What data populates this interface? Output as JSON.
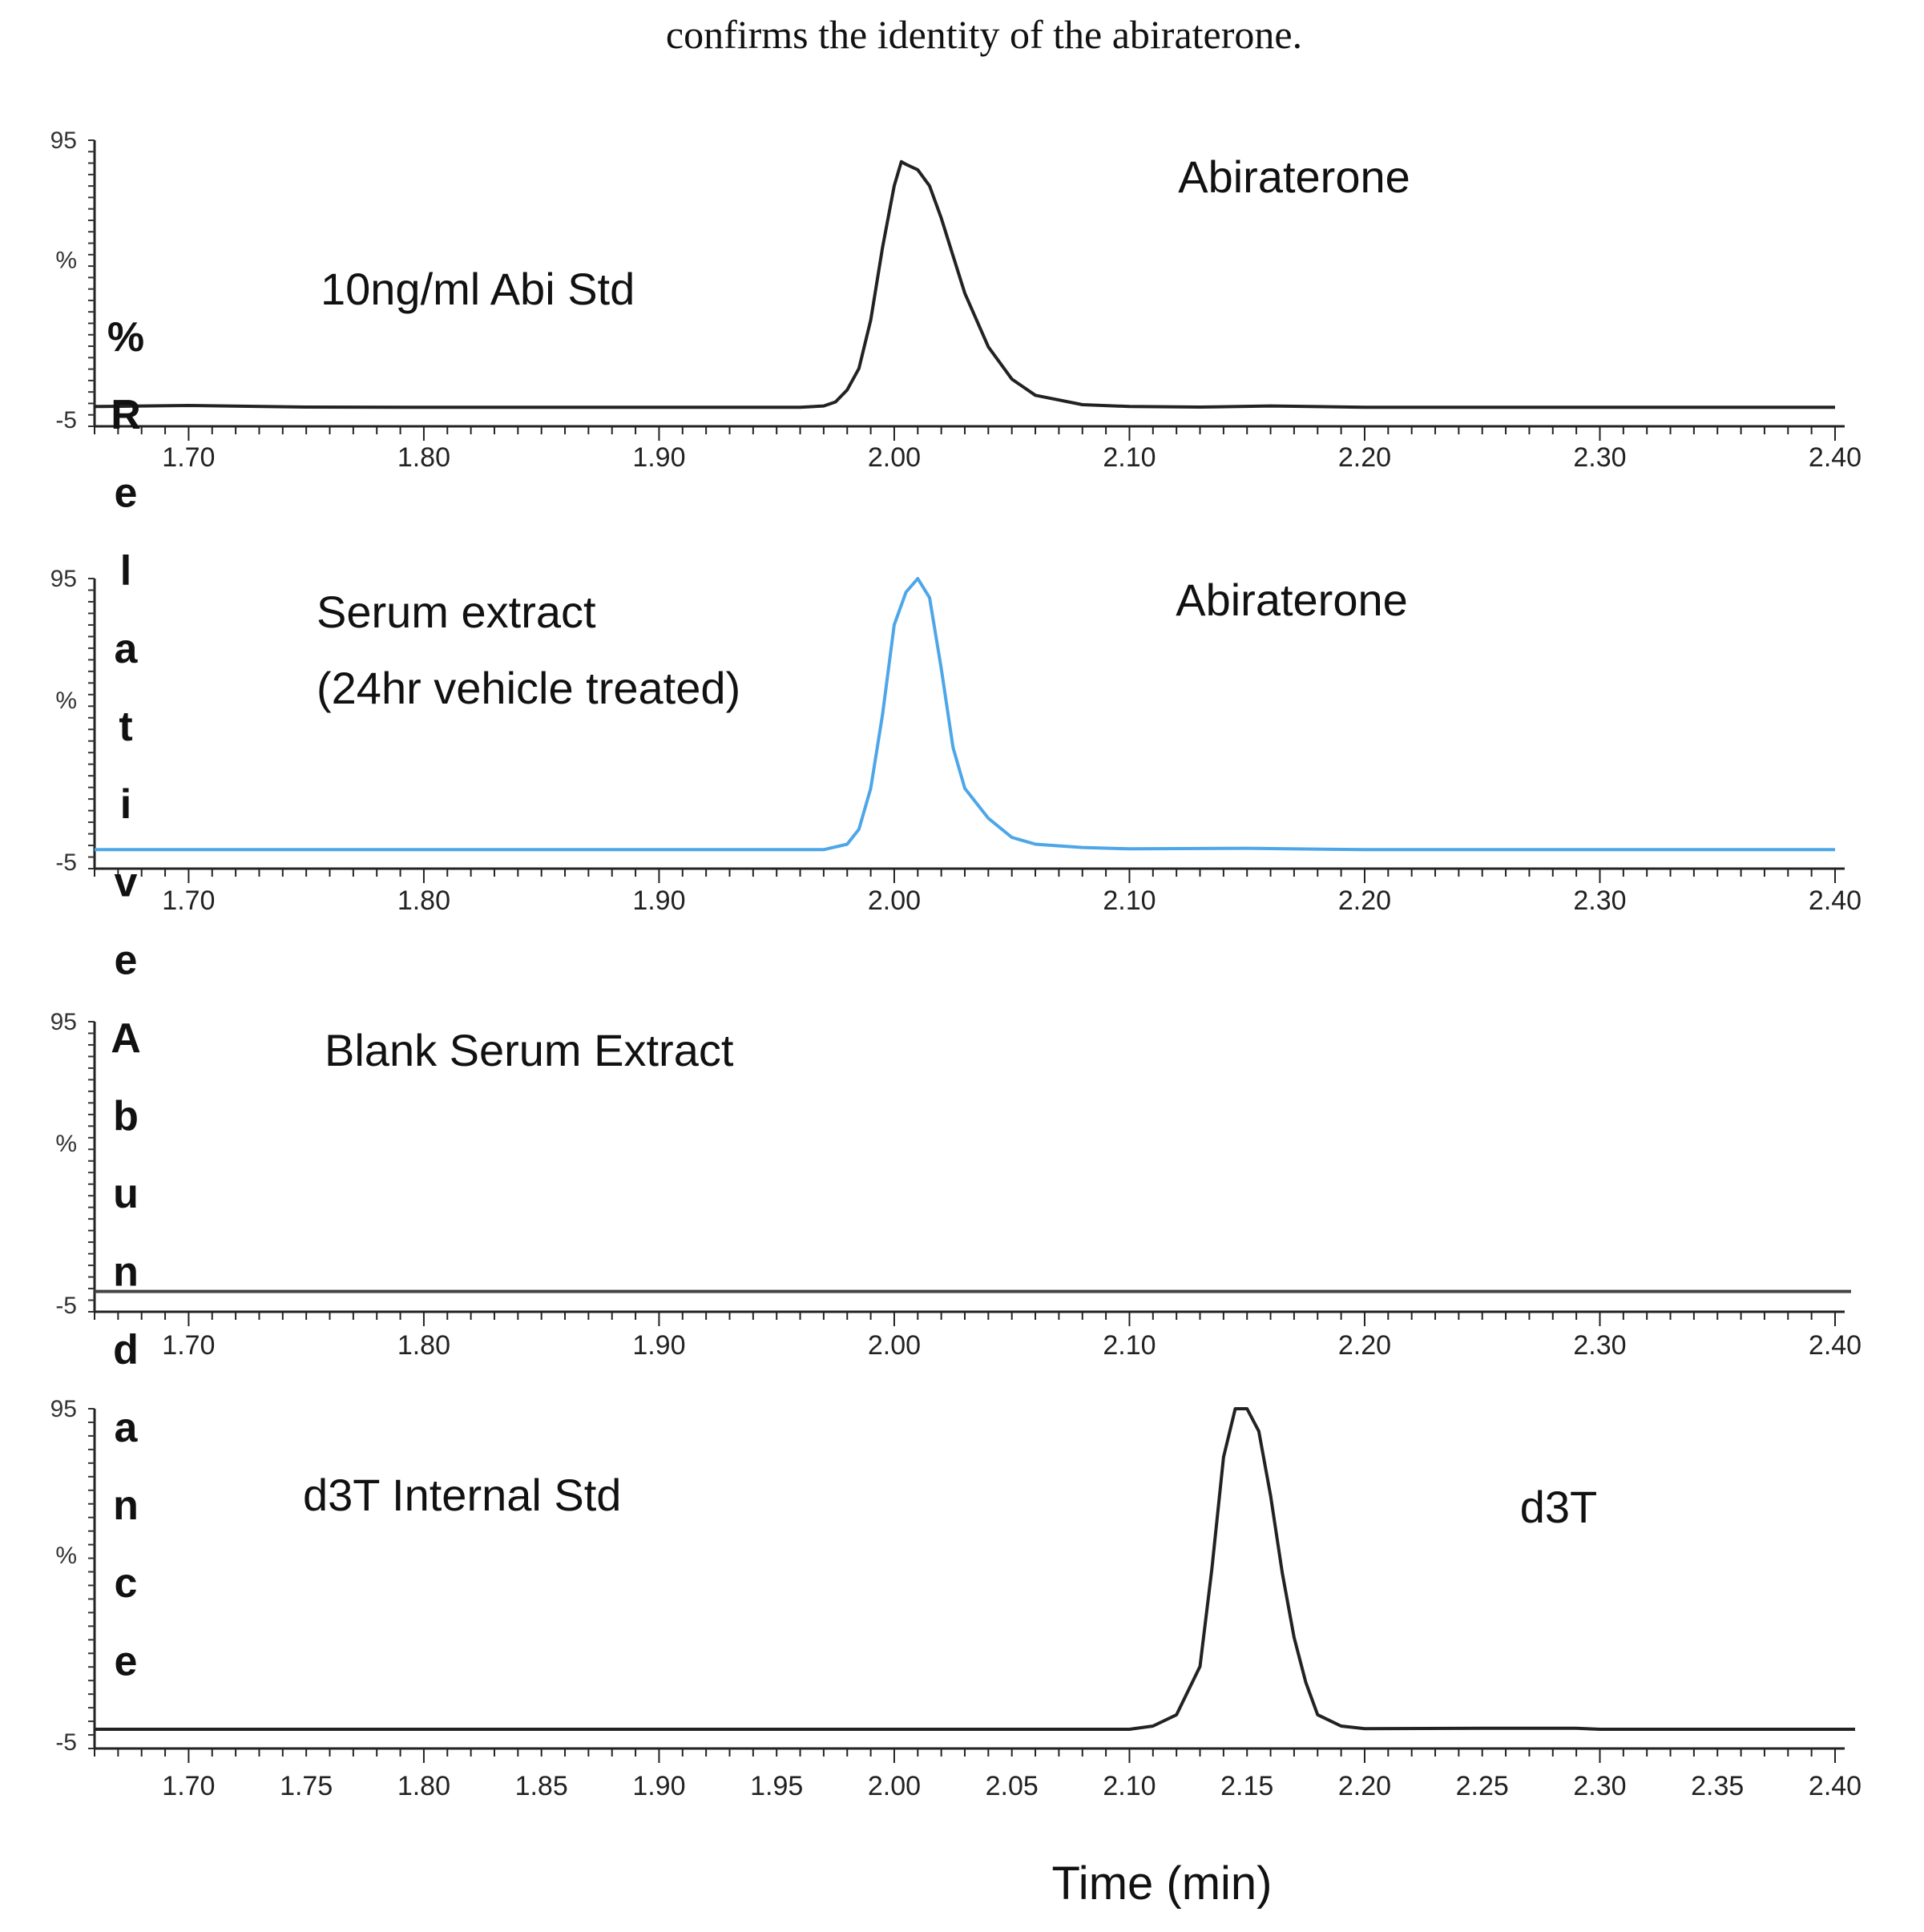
{
  "caption": "confirms the identity of the abiraterone.",
  "y_axis_label": "% Relative Abundance",
  "chart_data": [
    {
      "type": "line",
      "name": "10ng/ml Abi Std",
      "label_lines": [
        "10ng/ml Abi Std"
      ],
      "peak_label": "Abiraterone",
      "color": "#222222",
      "xlim": [
        1.66,
        2.4
      ],
      "ylim": [
        -5,
        95
      ],
      "x_ticks": [
        "1.70",
        "1.80",
        "1.90",
        "2.00",
        "2.10",
        "2.20",
        "2.30",
        "2.40"
      ],
      "y_ticks": [
        "95",
        "%",
        "-5"
      ],
      "x": [
        1.66,
        1.7,
        1.75,
        1.8,
        1.9,
        1.96,
        1.97,
        1.975,
        1.98,
        1.985,
        1.99,
        1.995,
        2.0,
        2.003,
        2.005,
        2.01,
        2.015,
        2.02,
        2.025,
        2.03,
        2.04,
        2.05,
        2.06,
        2.08,
        2.1,
        2.13,
        2.16,
        2.2,
        2.3,
        2.4
      ],
      "y": [
        -4.2,
        -3.8,
        -4.4,
        -4.5,
        -4.5,
        -4.5,
        -4.0,
        -2.5,
        2,
        10,
        28,
        55,
        78,
        87,
        86,
        84,
        78,
        66,
        52,
        38,
        18,
        6,
        0,
        -3.5,
        -4.2,
        -4.4,
        -4.0,
        -4.5,
        -4.5,
        -4.5
      ]
    },
    {
      "type": "line",
      "name": "Serum extract (24hr vehicle treated)",
      "label_lines": [
        "Serum extract",
        "(24hr vehicle treated)"
      ],
      "peak_label": "Abiraterone",
      "color": "#4da6e8",
      "xlim": [
        1.66,
        2.4
      ],
      "ylim": [
        -5,
        95
      ],
      "x_ticks": [
        "1.70",
        "1.80",
        "1.90",
        "2.00",
        "2.10",
        "2.20",
        "2.30",
        "2.40"
      ],
      "y_ticks": [
        "95",
        "%",
        "-5"
      ],
      "x": [
        1.66,
        1.7,
        1.8,
        1.9,
        1.97,
        1.98,
        1.985,
        1.99,
        1.995,
        2.0,
        2.005,
        2.01,
        2.015,
        2.02,
        2.025,
        2.03,
        2.04,
        2.05,
        2.06,
        2.08,
        2.1,
        2.15,
        2.2,
        2.3,
        2.4
      ],
      "y": [
        -4.5,
        -4.5,
        -4.5,
        -4.5,
        -4.5,
        -2.5,
        3,
        18,
        45,
        78,
        90,
        95,
        88,
        62,
        33,
        18,
        7,
        0,
        -2.5,
        -3.7,
        -4.2,
        -4.0,
        -4.5,
        -4.5,
        -4.5
      ]
    },
    {
      "type": "line",
      "name": "Blank Serum Extract",
      "label_lines": [
        "Blank Serum Extract"
      ],
      "peak_label": "",
      "color": "#444444",
      "xlim": [
        1.66,
        2.4
      ],
      "ylim": [
        -5,
        95
      ],
      "x_ticks": [
        "1.70",
        "1.80",
        "1.90",
        "2.00",
        "2.10",
        "2.20",
        "2.30",
        "2.40"
      ],
      "y_ticks": [
        "95",
        "%",
        "-5"
      ],
      "x": [
        1.66,
        1.8,
        2.0,
        2.2,
        2.4
      ],
      "y": [
        -4.0,
        -4.0,
        -4.0,
        -4.0,
        -4.0
      ]
    },
    {
      "type": "line",
      "name": "d3T Internal Std",
      "label_lines": [
        "d3T Internal Std"
      ],
      "peak_label": "d3T",
      "color": "#222222",
      "xlim": [
        1.66,
        2.4
      ],
      "ylim": [
        -5,
        95
      ],
      "x_ticks": [
        "1.70",
        "1.75",
        "1.80",
        "1.85",
        "1.90",
        "1.95",
        "2.00",
        "2.05",
        "2.10",
        "2.15",
        "2.20",
        "2.25",
        "2.30",
        "2.35",
        "2.40"
      ],
      "y_ticks": [
        "95",
        "%",
        "-5"
      ],
      "x": [
        1.66,
        1.8,
        2.0,
        2.1,
        2.11,
        2.12,
        2.13,
        2.135,
        2.14,
        2.145,
        2.15,
        2.155,
        2.16,
        2.165,
        2.17,
        2.175,
        2.18,
        2.19,
        2.2,
        2.25,
        2.29,
        2.3,
        2.4
      ],
      "y": [
        -4.5,
        -4.5,
        -4.5,
        -4.5,
        -3.5,
        0,
        15,
        45,
        80,
        95,
        95,
        88,
        68,
        44,
        24,
        10,
        0,
        -3.5,
        -4.3,
        -4.2,
        -4.2,
        -4.5,
        -4.5
      ]
    }
  ],
  "x_axis_label": "Time (min)"
}
